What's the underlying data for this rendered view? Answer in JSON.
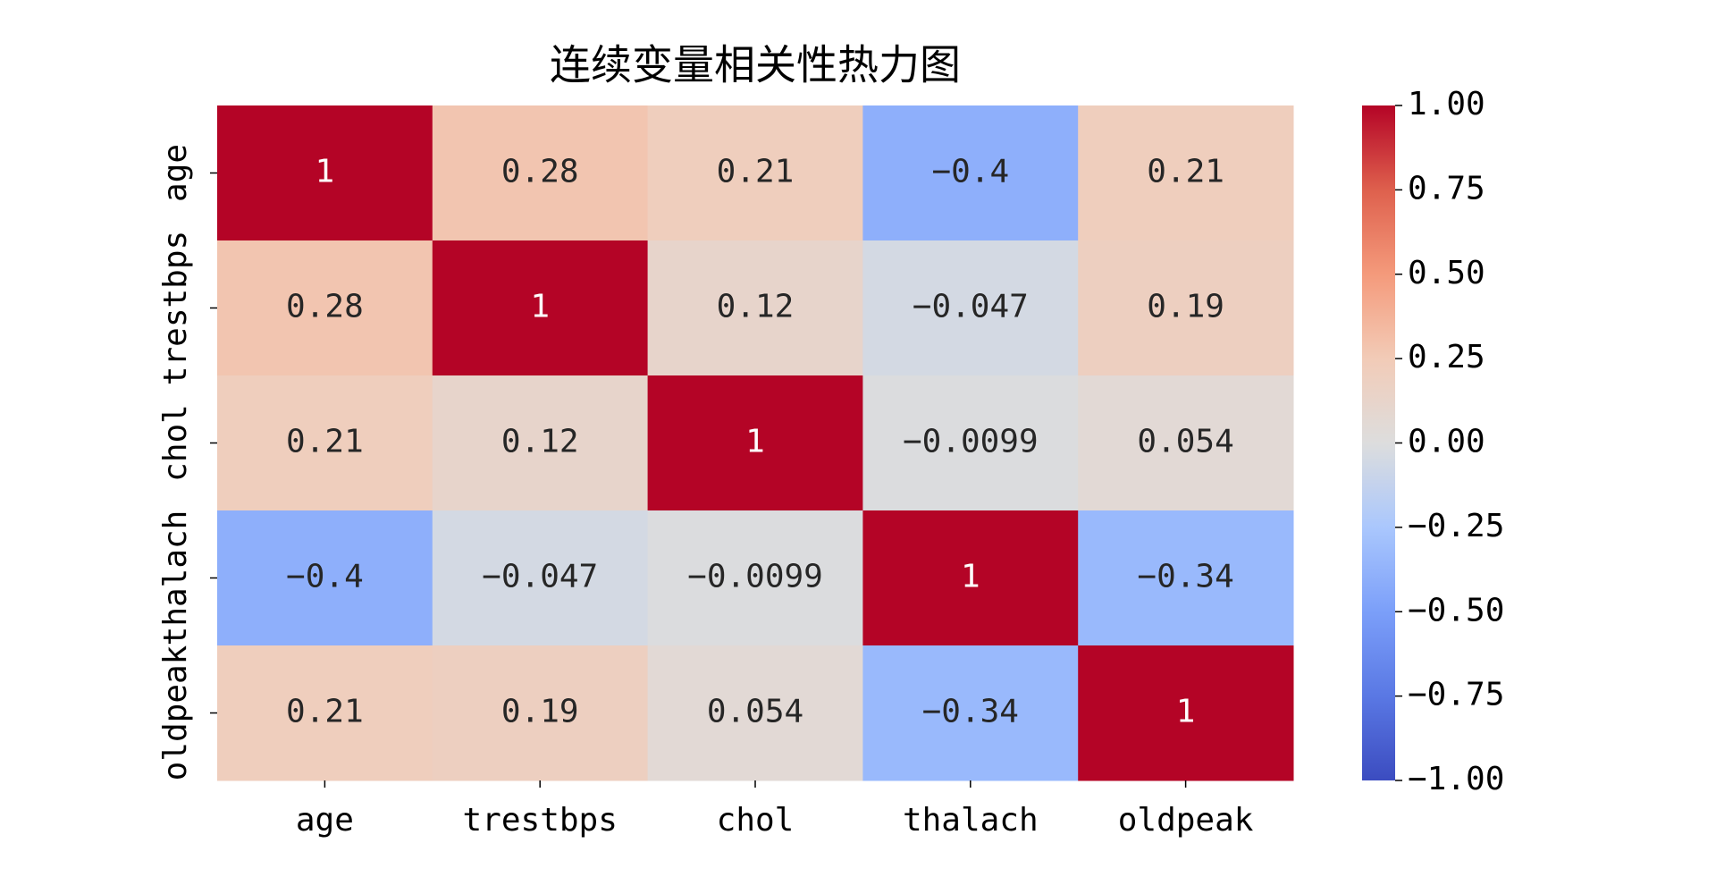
{
  "chart_data": {
    "type": "heatmap",
    "title": "连续变量相关性热力图",
    "x": [
      "age",
      "trestbps",
      "chol",
      "thalach",
      "oldpeak"
    ],
    "y": [
      "age",
      "trestbps",
      "chol",
      "thalach",
      "oldpeak"
    ],
    "values": [
      [
        1,
        0.28,
        0.21,
        -0.4,
        0.21
      ],
      [
        0.28,
        1,
        0.12,
        -0.047,
        0.19
      ],
      [
        0.21,
        0.12,
        1,
        -0.0099,
        0.054
      ],
      [
        -0.4,
        -0.047,
        -0.0099,
        1,
        -0.34
      ],
      [
        0.21,
        0.19,
        0.054,
        -0.34,
        1
      ]
    ],
    "value_labels": [
      [
        "1",
        "0.28",
        "0.21",
        "−0.4",
        "0.21"
      ],
      [
        "0.28",
        "1",
        "0.12",
        "−0.047",
        "0.19"
      ],
      [
        "0.21",
        "0.12",
        "1",
        "−0.0099",
        "0.054"
      ],
      [
        "−0.4",
        "−0.047",
        "−0.0099",
        "1",
        "−0.34"
      ],
      [
        "0.21",
        "0.19",
        "0.054",
        "−0.34",
        "1"
      ]
    ],
    "colormap": "coolwarm",
    "clim": [
      -1,
      1
    ],
    "cticks": [
      {
        "value": 1,
        "label": "1.00"
      },
      {
        "value": 0.75,
        "label": "0.75"
      },
      {
        "value": 0.5,
        "label": "0.50"
      },
      {
        "value": 0.25,
        "label": "0.25"
      },
      {
        "value": 0,
        "label": "0.00"
      },
      {
        "value": -0.25,
        "label": "−0.25"
      },
      {
        "value": -0.5,
        "label": "−0.50"
      },
      {
        "value": -0.75,
        "label": "−0.75"
      },
      {
        "value": -1,
        "label": "−1.00"
      }
    ]
  }
}
